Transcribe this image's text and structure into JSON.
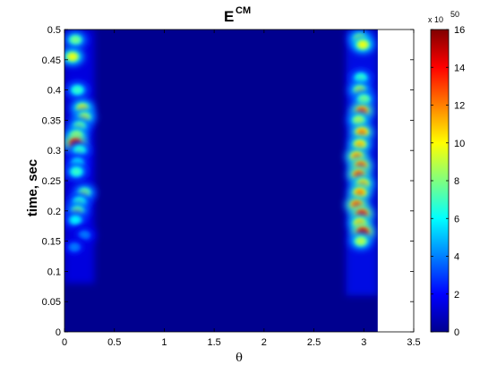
{
  "chart_data": {
    "type": "heatmap",
    "title": "E",
    "title_superscript": "CM",
    "xlabel": "θ",
    "ylabel": "time, sec",
    "xlim": [
      0,
      3.5
    ],
    "ylim": [
      0,
      0.5
    ],
    "x_ticks": [
      "0",
      "0.5",
      "1",
      "1.5",
      "2",
      "2.5",
      "3",
      "3.5"
    ],
    "y_ticks": [
      "0",
      "0.05",
      "0.1",
      "0.15",
      "0.2",
      "0.25",
      "0.3",
      "0.35",
      "0.4",
      "0.45",
      "0.5"
    ],
    "data_extent_x": [
      0,
      3.14
    ],
    "colormap": "jet",
    "colorbar": {
      "min": 0,
      "max": 16,
      "ticks": [
        "0",
        "2",
        "4",
        "6",
        "8",
        "10",
        "12",
        "14",
        "16"
      ],
      "multiplier_base": "x 10",
      "multiplier_exp": "50"
    },
    "hotspots": [
      {
        "theta": 0.11,
        "time": 0.483,
        "value": 8
      },
      {
        "theta": 0.08,
        "time": 0.455,
        "value": 10
      },
      {
        "theta": 0.13,
        "time": 0.4,
        "value": 7
      },
      {
        "theta": 0.18,
        "time": 0.37,
        "value": 10
      },
      {
        "theta": 0.2,
        "time": 0.355,
        "value": 9
      },
      {
        "theta": 0.15,
        "time": 0.34,
        "value": 8
      },
      {
        "theta": 0.12,
        "time": 0.325,
        "value": 9
      },
      {
        "theta": 0.11,
        "time": 0.312,
        "value": 15
      },
      {
        "theta": 0.15,
        "time": 0.3,
        "value": 7
      },
      {
        "theta": 0.13,
        "time": 0.28,
        "value": 6
      },
      {
        "theta": 0.12,
        "time": 0.265,
        "value": 7
      },
      {
        "theta": 0.2,
        "time": 0.23,
        "value": 8
      },
      {
        "theta": 0.15,
        "time": 0.215,
        "value": 7
      },
      {
        "theta": 0.13,
        "time": 0.2,
        "value": 8
      },
      {
        "theta": 0.11,
        "time": 0.185,
        "value": 6
      },
      {
        "theta": 0.2,
        "time": 0.16,
        "value": 4
      },
      {
        "theta": 0.1,
        "time": 0.14,
        "value": 4
      },
      {
        "theta": 2.96,
        "time": 0.485,
        "value": 9
      },
      {
        "theta": 2.99,
        "time": 0.475,
        "value": 10
      },
      {
        "theta": 2.97,
        "time": 0.42,
        "value": 7
      },
      {
        "theta": 2.96,
        "time": 0.4,
        "value": 9
      },
      {
        "theta": 3.0,
        "time": 0.385,
        "value": 8
      },
      {
        "theta": 2.98,
        "time": 0.365,
        "value": 13
      },
      {
        "theta": 2.95,
        "time": 0.35,
        "value": 9
      },
      {
        "theta": 2.98,
        "time": 0.33,
        "value": 12
      },
      {
        "theta": 2.96,
        "time": 0.31,
        "value": 11
      },
      {
        "theta": 2.93,
        "time": 0.29,
        "value": 12
      },
      {
        "theta": 2.97,
        "time": 0.275,
        "value": 13
      },
      {
        "theta": 2.95,
        "time": 0.26,
        "value": 13
      },
      {
        "theta": 2.99,
        "time": 0.245,
        "value": 11
      },
      {
        "theta": 2.96,
        "time": 0.23,
        "value": 12
      },
      {
        "theta": 2.93,
        "time": 0.21,
        "value": 13
      },
      {
        "theta": 2.98,
        "time": 0.195,
        "value": 14
      },
      {
        "theta": 2.96,
        "time": 0.18,
        "value": 11
      },
      {
        "theta": 2.99,
        "time": 0.165,
        "value": 15
      },
      {
        "theta": 2.97,
        "time": 0.15,
        "value": 9
      }
    ]
  }
}
